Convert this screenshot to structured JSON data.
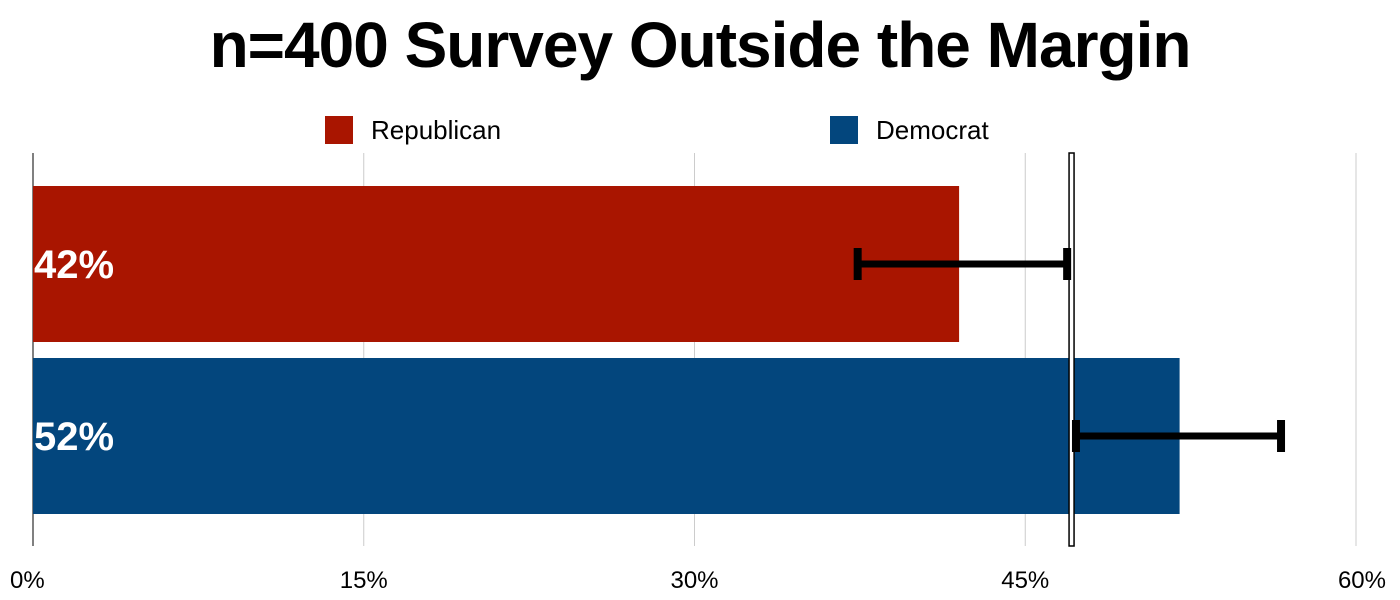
{
  "chart_data": {
    "type": "bar",
    "orientation": "horizontal",
    "title": "n=400 Survey Outside the Margin",
    "categories": [
      "Republican",
      "Democrat"
    ],
    "values": [
      42,
      52
    ],
    "value_labels": [
      "42%",
      "52%"
    ],
    "colors": [
      "#a91500",
      "#03467d"
    ],
    "error_bars": [
      {
        "low": 37.4,
        "high": 46.9
      },
      {
        "low": 47.3,
        "high": 56.6
      }
    ],
    "reference_line": 47.1,
    "xlim": [
      0,
      60
    ],
    "xticks": [
      0,
      15,
      30,
      45,
      60
    ],
    "xtick_labels": [
      "0%",
      "15%",
      "30%",
      "45%",
      "60%"
    ],
    "grid": true,
    "legend_position": "top"
  }
}
